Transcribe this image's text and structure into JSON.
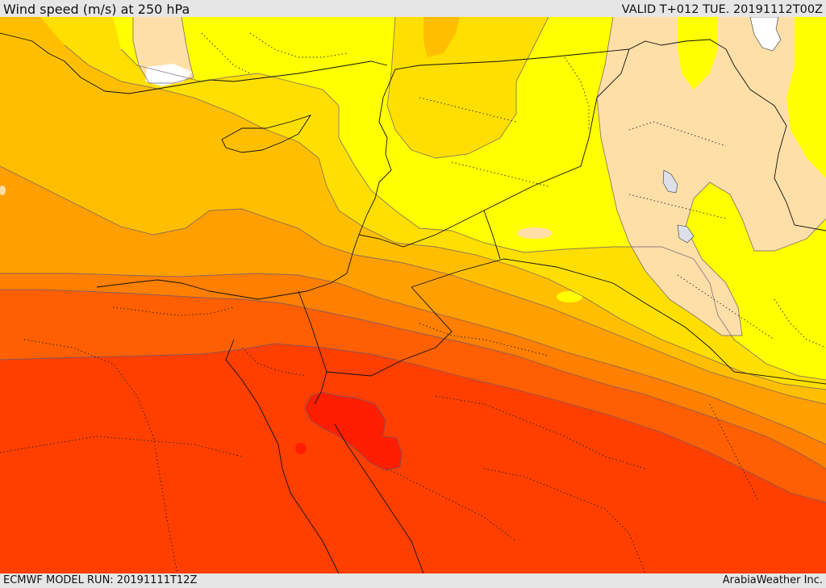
{
  "header": {
    "title": "Wind speed (m/s) at 250 hPa",
    "valid_time": "VALID T+012 TUE. 20191112T00Z"
  },
  "footer": {
    "model_run": "ECMWF MODEL RUN: 20191111T12Z",
    "credit": "ArabiaWeather Inc."
  },
  "map": {
    "colors": {
      "white": "#ffffff",
      "light_tan": "#ffdfa8",
      "yellow": "#ffff00",
      "gold": "#ffdf00",
      "amber": "#ffbf00",
      "orange": "#ff9f00",
      "dark_orange": "#ff7f00",
      "orange_red": "#ff5f00",
      "red_orange": "#ff3f00",
      "red": "#ff1f00",
      "lake": "#dde0e8"
    }
  }
}
